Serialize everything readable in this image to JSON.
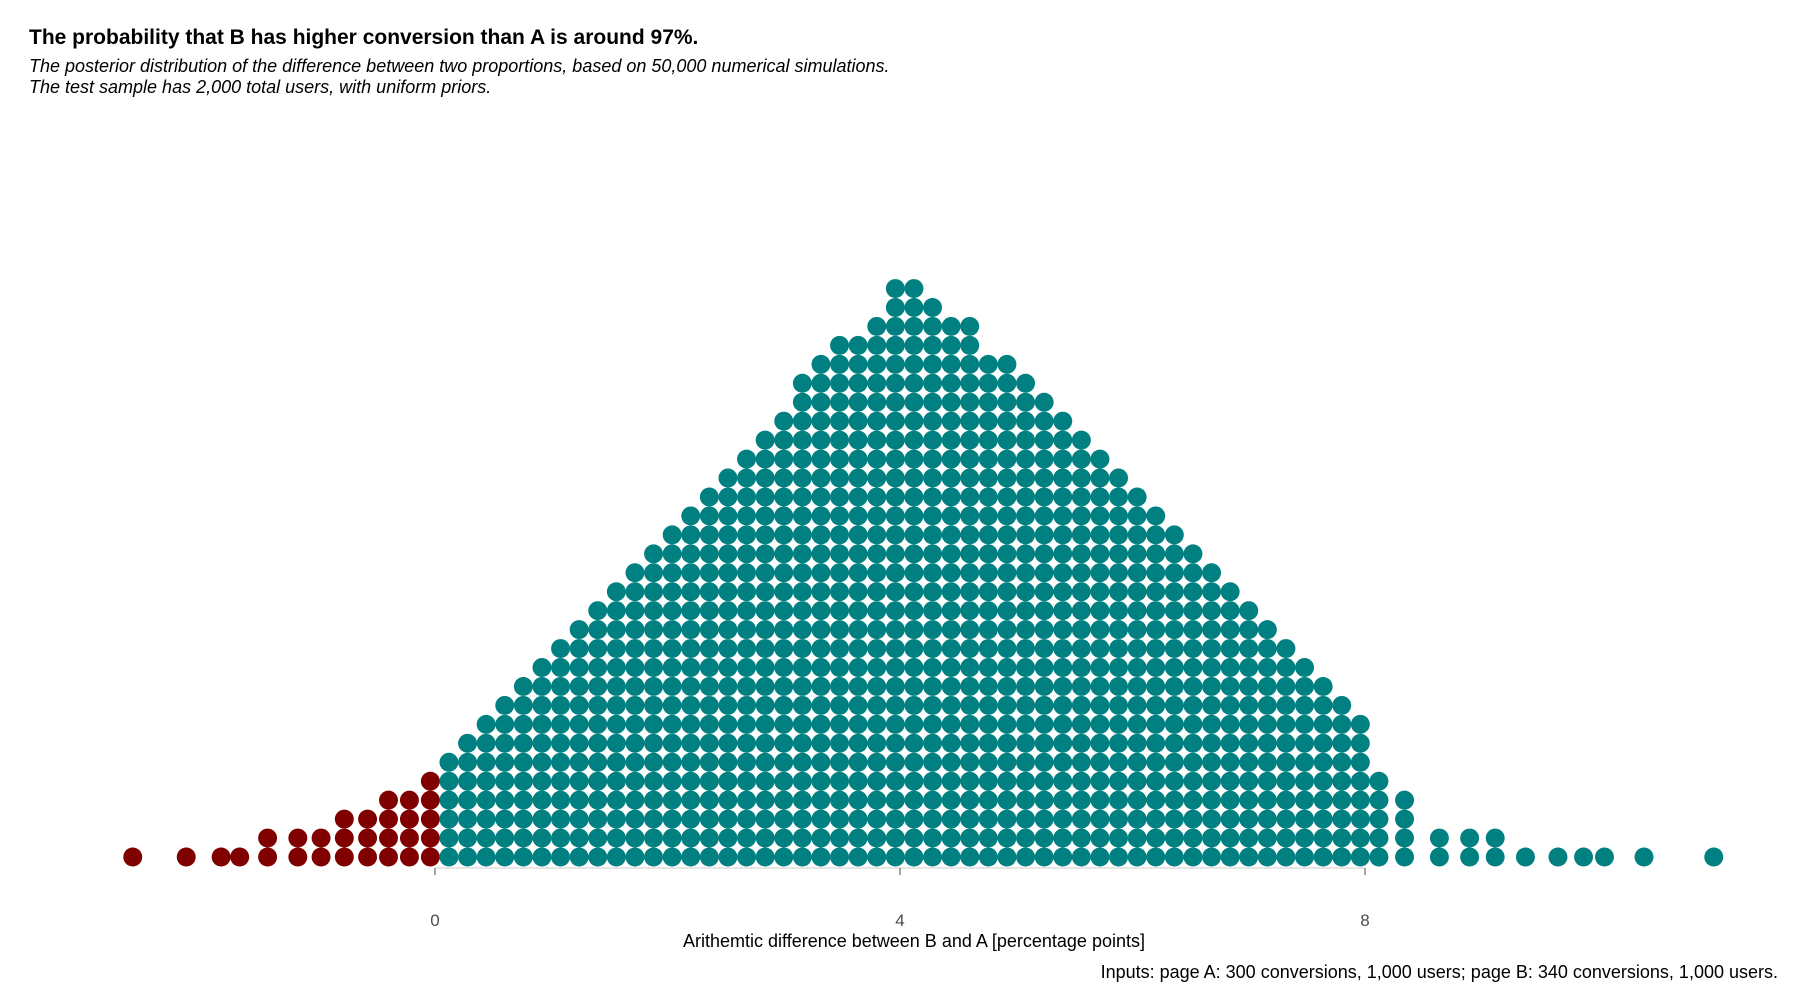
{
  "header": {
    "title": "The probability that B has higher conversion than A is around 97%.",
    "subtitle_line1": "The posterior distribution of the difference between two proportions, based on 50,000 numerical simulations.",
    "subtitle_line2": "The test sample has 2,000 total users, with uniform priors."
  },
  "caption": "Inputs: page A: 300 conversions, 1,000 users; page B: 340 conversions, 1,000 users.",
  "colors": {
    "negative": "#800000",
    "positive": "#008080",
    "tick": "#4d4d4d"
  },
  "chart_data": {
    "type": "dotplot",
    "xlabel": "Arithemtic difference between B and A [percentage points]",
    "ylabel": "",
    "xlim": [
      -2.6,
      11.0
    ],
    "x_ticks": [
      0,
      4,
      8
    ],
    "x_tick_labels": [
      "0",
      "4",
      "8"
    ],
    "grid": false,
    "dot_diameter_x": 0.163,
    "columns": [
      {
        "x": -2.6,
        "n": 1
      },
      {
        "x": -2.14,
        "n": 1
      },
      {
        "x": -1.84,
        "n": 1
      },
      {
        "x": -1.68,
        "n": 1
      },
      {
        "x": -1.44,
        "n": 2
      },
      {
        "x": -1.18,
        "n": 2
      },
      {
        "x": -0.98,
        "n": 2
      },
      {
        "x": -0.78,
        "n": 3
      },
      {
        "x": -0.58,
        "n": 3
      },
      {
        "x": -0.4,
        "n": 4
      },
      {
        "x": -0.22,
        "n": 4
      },
      {
        "x": -0.04,
        "n": 5
      },
      {
        "x": 0.12,
        "n": 6
      },
      {
        "x": 0.28,
        "n": 7
      },
      {
        "x": 0.44,
        "n": 8
      },
      {
        "x": 0.6,
        "n": 9
      },
      {
        "x": 0.76,
        "n": 10
      },
      {
        "x": 0.92,
        "n": 11
      },
      {
        "x": 1.08,
        "n": 12
      },
      {
        "x": 1.24,
        "n": 13
      },
      {
        "x": 1.4,
        "n": 14
      },
      {
        "x": 1.56,
        "n": 15
      },
      {
        "x": 1.72,
        "n": 16
      },
      {
        "x": 1.88,
        "n": 17
      },
      {
        "x": 2.04,
        "n": 18
      },
      {
        "x": 2.2,
        "n": 19
      },
      {
        "x": 2.36,
        "n": 20
      },
      {
        "x": 2.52,
        "n": 21
      },
      {
        "x": 2.68,
        "n": 22
      },
      {
        "x": 2.84,
        "n": 23
      },
      {
        "x": 3.0,
        "n": 24
      },
      {
        "x": 3.16,
        "n": 26
      },
      {
        "x": 3.32,
        "n": 27
      },
      {
        "x": 3.48,
        "n": 28
      },
      {
        "x": 3.64,
        "n": 28
      },
      {
        "x": 3.8,
        "n": 29
      },
      {
        "x": 3.96,
        "n": 31
      },
      {
        "x": 4.12,
        "n": 31
      },
      {
        "x": 4.28,
        "n": 30
      },
      {
        "x": 4.44,
        "n": 29
      },
      {
        "x": 4.6,
        "n": 29
      },
      {
        "x": 4.76,
        "n": 27
      },
      {
        "x": 4.92,
        "n": 27
      },
      {
        "x": 5.08,
        "n": 26
      },
      {
        "x": 5.24,
        "n": 25
      },
      {
        "x": 5.4,
        "n": 24
      },
      {
        "x": 5.56,
        "n": 23
      },
      {
        "x": 5.72,
        "n": 22
      },
      {
        "x": 5.88,
        "n": 21
      },
      {
        "x": 6.04,
        "n": 20
      },
      {
        "x": 6.2,
        "n": 19
      },
      {
        "x": 6.36,
        "n": 18
      },
      {
        "x": 6.52,
        "n": 17
      },
      {
        "x": 6.68,
        "n": 16
      },
      {
        "x": 6.84,
        "n": 15
      },
      {
        "x": 7.0,
        "n": 14
      },
      {
        "x": 7.16,
        "n": 13
      },
      {
        "x": 7.32,
        "n": 12
      },
      {
        "x": 7.48,
        "n": 11
      },
      {
        "x": 7.64,
        "n": 10
      },
      {
        "x": 7.8,
        "n": 9
      },
      {
        "x": 7.96,
        "n": 8
      },
      {
        "x": 8.12,
        "n": 5
      },
      {
        "x": 8.34,
        "n": 4
      },
      {
        "x": 8.64,
        "n": 2
      },
      {
        "x": 8.9,
        "n": 2
      },
      {
        "x": 9.12,
        "n": 2
      },
      {
        "x": 9.38,
        "n": 1
      },
      {
        "x": 9.66,
        "n": 1
      },
      {
        "x": 9.88,
        "n": 1
      },
      {
        "x": 10.06,
        "n": 1
      },
      {
        "x": 10.4,
        "n": 1
      },
      {
        "x": 11.0,
        "n": 1
      }
    ]
  }
}
